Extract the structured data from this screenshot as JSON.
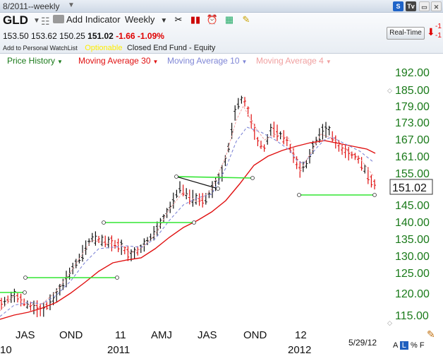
{
  "window": {
    "title": "8/2011--weekly"
  },
  "toolbar": {
    "symbol": "GLD",
    "add_indicator_label": "Add Indicator",
    "period_label": "Weekly",
    "realtime_label": "Real-Time"
  },
  "quote": {
    "open": "153.50",
    "high": "153.62",
    "low": "150.25",
    "last": "151.02",
    "change": "-1.66",
    "change_pct": "-1.09%",
    "watchlist_label": "Add to Personal WatchList",
    "optionable_label": "Optionable",
    "fund_type": "Closed End Fund - Equity",
    "side_neg_1": "-1",
    "side_neg_2": "-1"
  },
  "legend": {
    "price_history": "Price History",
    "ma30": "Moving Average 30",
    "ma10": "Moving Average 10",
    "ma4": "Moving Average 4"
  },
  "colors": {
    "price_history": "#1a7a1a",
    "ma30": "#e01010",
    "ma10": "#7f86d6",
    "ma4": "#f0a0a0",
    "axis_label": "#1a7a1a",
    "trend_line": "#32e632",
    "bar_up": "#111111",
    "bar_down": "#e01010"
  },
  "chart_data": {
    "type": "line",
    "y_ticks": [
      "192.00",
      "185.00",
      "179.00",
      "173.00",
      "167.00",
      "161.00",
      "155.00",
      "151.02",
      "145.00",
      "140.00",
      "135.00",
      "130.00",
      "125.00",
      "120.00",
      "115.00"
    ],
    "y_range": [
      112,
      194
    ],
    "current_price": "151.02",
    "x_month_labels": [
      "JAS",
      "OND",
      "11",
      "AMJ",
      "JAS",
      "OND",
      "12"
    ],
    "x_year_labels": [
      "10",
      "2011",
      "2012"
    ],
    "date_stamp": "5/29/12",
    "ohlc_weekly_approx": [
      {
        "x": "2010-08",
        "close": 120
      },
      {
        "x": "2010-10",
        "close": 131
      },
      {
        "x": "2011-01",
        "close": 134
      },
      {
        "x": "2011-04",
        "close": 146
      },
      {
        "x": "2011-06",
        "close": 150
      },
      {
        "x": "2011-08",
        "close": 178
      },
      {
        "x": "2011-09",
        "close": 162
      },
      {
        "x": "2011-11",
        "close": 170
      },
      {
        "x": "2011-12",
        "close": 151
      },
      {
        "x": "2012-02",
        "close": 170
      },
      {
        "x": "2012-05",
        "close": 151
      }
    ],
    "series": [
      {
        "name": "Moving Average 30"
      },
      {
        "name": "Moving Average 10"
      },
      {
        "name": "Moving Average 4"
      }
    ]
  },
  "bottom_tools": {
    "a": "A",
    "l": "L",
    "pct": "%",
    "f": "F"
  }
}
